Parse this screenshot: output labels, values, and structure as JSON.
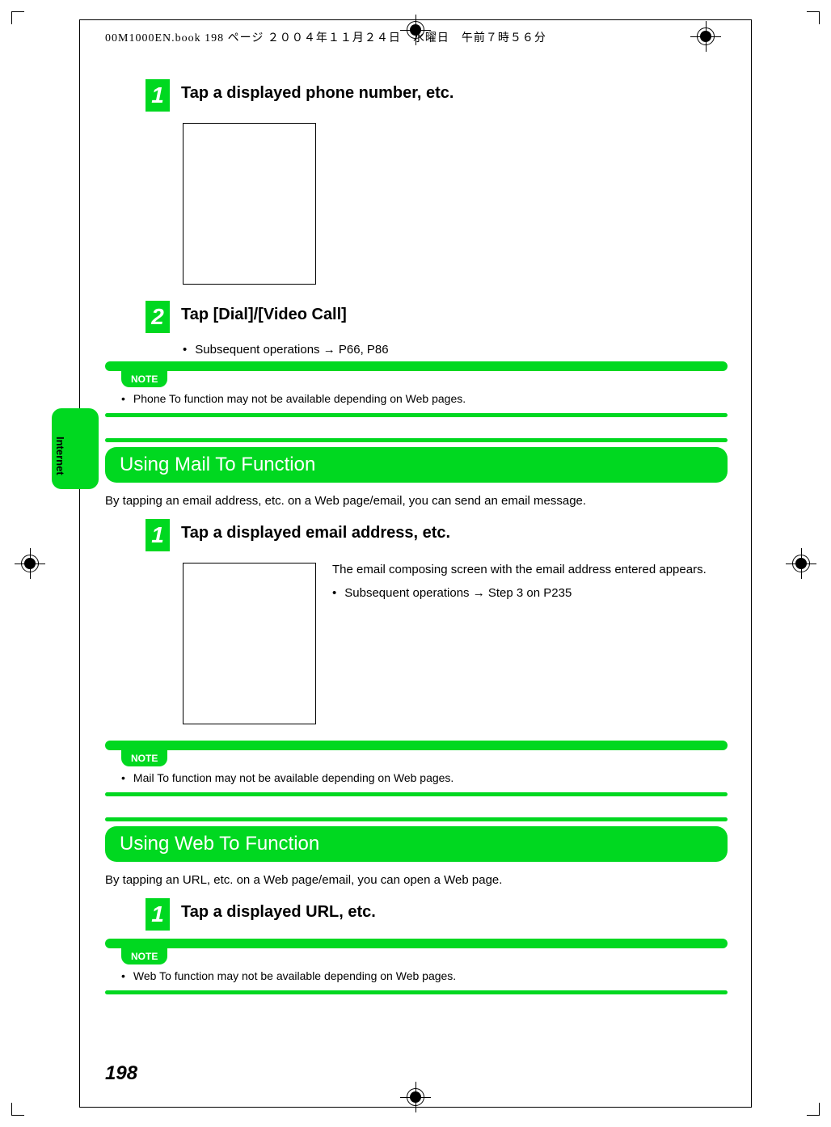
{
  "colors": {
    "accent": "#00d820",
    "text": "#000000",
    "bg": "#ffffff"
  },
  "header": {
    "running": "00M1000EN.book  198 ページ  ２００４年１１月２４日　水曜日　午前７時５６分"
  },
  "side_tab": {
    "label": "Internet"
  },
  "page_number": "198",
  "step1": {
    "num": "1",
    "title": "Tap a displayed phone number, etc."
  },
  "step2": {
    "num": "2",
    "title": "Tap [Dial]/[Video Call]",
    "bullet": "Subsequent operations → P66, P86"
  },
  "note1": {
    "label": "NOTE",
    "text": "Phone To function may not be available depending on Web pages."
  },
  "section_mail": {
    "heading": "Using Mail To Function",
    "intro": "By tapping an email address, etc. on a Web page/email, you can send an email message.",
    "step1": {
      "num": "1",
      "title": "Tap a displayed email address, etc."
    },
    "desc": "The email composing screen with the email address entered appears.",
    "bullet": "Subsequent operations → Step 3 on P235"
  },
  "note2": {
    "label": "NOTE",
    "text": "Mail To function may not be available depending on Web pages."
  },
  "section_web": {
    "heading": "Using Web To Function",
    "intro": "By tapping an URL, etc. on a Web page/email, you can open a Web page.",
    "step1": {
      "num": "1",
      "title": "Tap a displayed URL, etc."
    }
  },
  "note3": {
    "label": "NOTE",
    "text": "Web To function may not be available depending on Web pages."
  }
}
